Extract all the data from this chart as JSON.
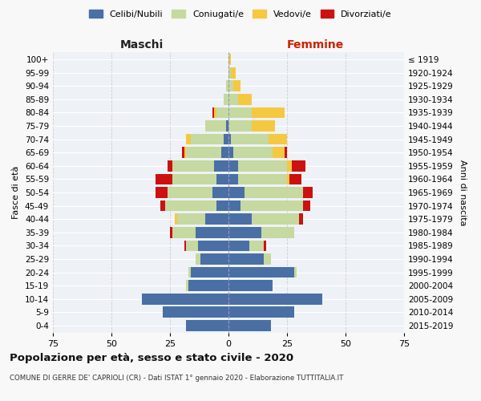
{
  "age_groups": [
    "0-4",
    "5-9",
    "10-14",
    "15-19",
    "20-24",
    "25-29",
    "30-34",
    "35-39",
    "40-44",
    "45-49",
    "50-54",
    "55-59",
    "60-64",
    "65-69",
    "70-74",
    "75-79",
    "80-84",
    "85-89",
    "90-94",
    "95-99",
    "100+"
  ],
  "birth_years": [
    "2015-2019",
    "2010-2014",
    "2005-2009",
    "2000-2004",
    "1995-1999",
    "1990-1994",
    "1985-1989",
    "1980-1984",
    "1975-1979",
    "1970-1974",
    "1965-1969",
    "1960-1964",
    "1955-1959",
    "1950-1954",
    "1945-1949",
    "1940-1944",
    "1935-1939",
    "1930-1934",
    "1925-1929",
    "1920-1924",
    "≤ 1919"
  ],
  "colors": {
    "celibi": "#4a6fa5",
    "coniugati": "#c5d9a0",
    "vedovi": "#f5c842",
    "divorziati": "#cc1111"
  },
  "maschi": {
    "celibi": [
      18,
      28,
      37,
      17,
      16,
      12,
      13,
      14,
      10,
      5,
      7,
      5,
      6,
      3,
      2,
      1,
      0,
      0,
      0,
      0,
      0
    ],
    "coniugati": [
      0,
      0,
      0,
      1,
      1,
      2,
      5,
      10,
      12,
      22,
      19,
      19,
      18,
      15,
      14,
      9,
      5,
      2,
      1,
      0,
      0
    ],
    "vedovi": [
      0,
      0,
      0,
      0,
      0,
      0,
      0,
      0,
      1,
      0,
      0,
      0,
      0,
      1,
      2,
      0,
      1,
      0,
      0,
      0,
      0
    ],
    "divorziati": [
      0,
      0,
      0,
      0,
      0,
      0,
      1,
      1,
      0,
      2,
      5,
      7,
      2,
      1,
      0,
      0,
      1,
      0,
      0,
      0,
      0
    ]
  },
  "femmine": {
    "celibi": [
      18,
      28,
      40,
      19,
      28,
      15,
      9,
      14,
      10,
      5,
      7,
      4,
      4,
      2,
      1,
      0,
      0,
      0,
      0,
      0,
      0
    ],
    "coniugati": [
      0,
      0,
      0,
      0,
      1,
      3,
      6,
      14,
      20,
      27,
      25,
      21,
      21,
      17,
      16,
      10,
      10,
      4,
      2,
      1,
      0
    ],
    "vedovi": [
      0,
      0,
      0,
      0,
      0,
      0,
      0,
      0,
      0,
      0,
      0,
      1,
      2,
      5,
      8,
      10,
      14,
      6,
      3,
      2,
      1
    ],
    "divorziati": [
      0,
      0,
      0,
      0,
      0,
      0,
      1,
      0,
      2,
      3,
      4,
      5,
      6,
      1,
      0,
      0,
      0,
      0,
      0,
      0,
      0
    ]
  },
  "xlim": 75,
  "title": "Popolazione per età, sesso e stato civile - 2020",
  "subtitle": "COMUNE DI GERRE DE' CAPRIOLI (CR) - Dati ISTAT 1° gennaio 2020 - Elaborazione TUTTITALIA.IT",
  "xlabel_left": "Maschi",
  "xlabel_right": "Femmine",
  "ylabel_left": "Fasce di età",
  "ylabel_right": "Anni di nascita",
  "legend_labels": [
    "Celibi/Nubili",
    "Coniugati/e",
    "Vedovi/e",
    "Divorziati/e"
  ],
  "bg_color": "#f8f8f8",
  "plot_bg": "#eef2f7",
  "xticks": [
    -75,
    -50,
    -25,
    0,
    25,
    50,
    75
  ]
}
